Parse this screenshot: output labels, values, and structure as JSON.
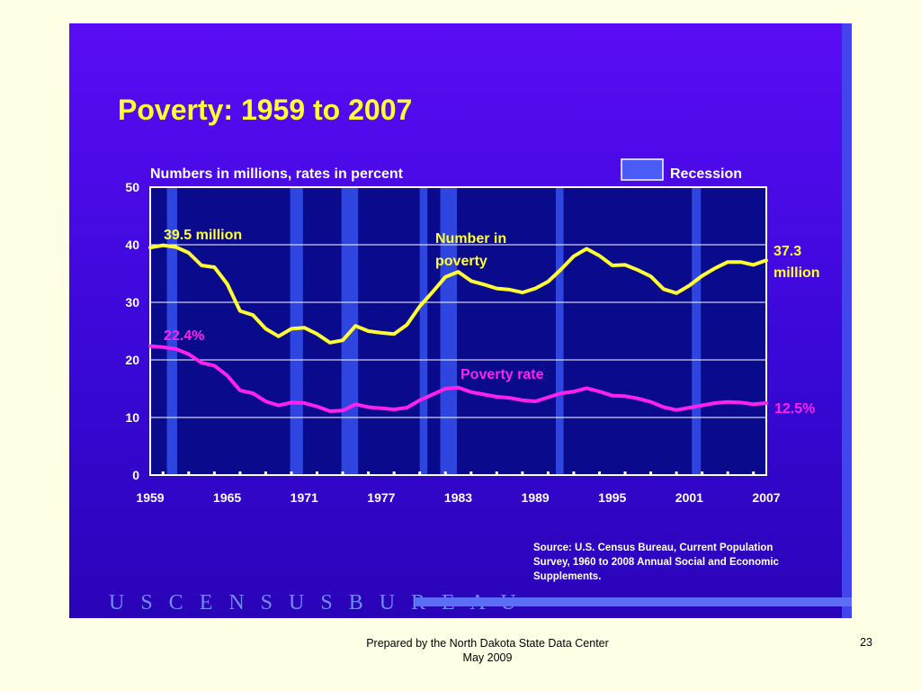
{
  "slide": {
    "title": "Poverty:  1959 to 2007",
    "source_line1": "Source:  U.S. Census Bureau, Current Population",
    "source_line2": "Survey, 1960 to 2008 Annual Social and Economic",
    "source_line3": "Supplements.",
    "logo_text": "U S C E N S U S B U R E A U",
    "footer_line1": "Prepared by the North Dakota State Data Center",
    "footer_line2": "May 2009",
    "page_number": "23"
  },
  "colors": {
    "panel": "#4a0ae8",
    "plot_bg": "#0a0a8c",
    "recession": "#2f45e0",
    "number_line": "#ffff33",
    "rate_line": "#ff22ee",
    "text_yellow": "#ffff33",
    "text_magenta": "#ff22ee"
  },
  "chart_data": {
    "type": "line",
    "subtitle": "Numbers in millions, rates in percent",
    "legend": {
      "label": "Recession",
      "position": "top-right"
    },
    "x_ticks": [
      "1959",
      "1965",
      "1971",
      "1977",
      "1983",
      "1989",
      "1995",
      "2001",
      "2007"
    ],
    "y_ticks": [
      "0",
      "10",
      "20",
      "30",
      "40",
      "50"
    ],
    "xlim": [
      1959,
      2007
    ],
    "ylim": [
      0,
      50
    ],
    "grid": true,
    "recessions": [
      [
        1960.3,
        1961.1
      ],
      [
        1969.9,
        1970.9
      ],
      [
        1973.9,
        1975.2
      ],
      [
        1980.0,
        1980.6
      ],
      [
        1981.6,
        1982.9
      ],
      [
        1990.6,
        1991.2
      ],
      [
        2001.2,
        2001.9
      ]
    ],
    "annotations": {
      "number_start": "39.5 million",
      "rate_start": "22.4%",
      "number_end_1": "37.3",
      "number_end_2": "million",
      "rate_end": "12.5%",
      "number_label_1": "Number in",
      "number_label_2": "poverty",
      "rate_label": "Poverty rate"
    },
    "series": [
      {
        "name": "Number in poverty",
        "x": [
          1959,
          1960,
          1961,
          1962,
          1963,
          1964,
          1965,
          1966,
          1967,
          1968,
          1969,
          1970,
          1971,
          1972,
          1973,
          1974,
          1975,
          1976,
          1977,
          1978,
          1979,
          1980,
          1981,
          1982,
          1983,
          1984,
          1985,
          1986,
          1987,
          1988,
          1989,
          1990,
          1991,
          1992,
          1993,
          1994,
          1995,
          1996,
          1997,
          1998,
          1999,
          2000,
          2001,
          2002,
          2003,
          2004,
          2005,
          2006,
          2007
        ],
        "values": [
          39.5,
          39.9,
          39.6,
          38.6,
          36.4,
          36.1,
          33.2,
          28.5,
          27.8,
          25.4,
          24.1,
          25.4,
          25.6,
          24.5,
          23.0,
          23.4,
          25.9,
          25.0,
          24.7,
          24.5,
          26.1,
          29.3,
          31.8,
          34.4,
          35.3,
          33.7,
          33.1,
          32.4,
          32.2,
          31.7,
          32.4,
          33.6,
          35.7,
          38.0,
          39.3,
          38.1,
          36.4,
          36.5,
          35.6,
          34.5,
          32.3,
          31.6,
          32.9,
          34.6,
          35.9,
          37.0,
          37.0,
          36.5,
          37.3
        ]
      },
      {
        "name": "Poverty rate",
        "x": [
          1959,
          1960,
          1961,
          1962,
          1963,
          1964,
          1965,
          1966,
          1967,
          1968,
          1969,
          1970,
          1971,
          1972,
          1973,
          1974,
          1975,
          1976,
          1977,
          1978,
          1979,
          1980,
          1981,
          1982,
          1983,
          1984,
          1985,
          1986,
          1987,
          1988,
          1989,
          1990,
          1991,
          1992,
          1993,
          1994,
          1995,
          1996,
          1997,
          1998,
          1999,
          2000,
          2001,
          2002,
          2003,
          2004,
          2005,
          2006,
          2007
        ],
        "values": [
          22.4,
          22.2,
          21.9,
          21.0,
          19.5,
          19.0,
          17.3,
          14.7,
          14.2,
          12.8,
          12.1,
          12.6,
          12.5,
          11.9,
          11.1,
          11.2,
          12.3,
          11.8,
          11.6,
          11.4,
          11.7,
          13.0,
          14.0,
          15.0,
          15.2,
          14.4,
          14.0,
          13.6,
          13.4,
          13.0,
          12.8,
          13.5,
          14.2,
          14.5,
          15.1,
          14.5,
          13.8,
          13.7,
          13.3,
          12.7,
          11.8,
          11.3,
          11.7,
          12.1,
          12.5,
          12.7,
          12.6,
          12.3,
          12.5
        ]
      }
    ]
  }
}
